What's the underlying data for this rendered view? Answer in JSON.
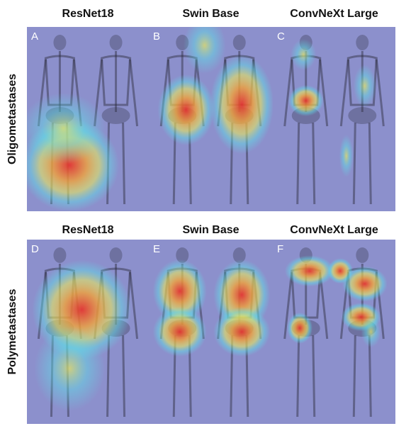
{
  "rows": [
    {
      "label": "Oligometastases",
      "panels": [
        {
          "letter": "A",
          "title": "ResNet18"
        },
        {
          "letter": "B",
          "title": "Swin Base"
        },
        {
          "letter": "C",
          "title": "ConvNeXt Large"
        }
      ]
    },
    {
      "label": "Polymetastases",
      "panels": [
        {
          "letter": "D",
          "title": "ResNet18"
        },
        {
          "letter": "E",
          "title": "Swin Base"
        },
        {
          "letter": "F",
          "title": "ConvNeXt Large"
        }
      ]
    }
  ]
}
